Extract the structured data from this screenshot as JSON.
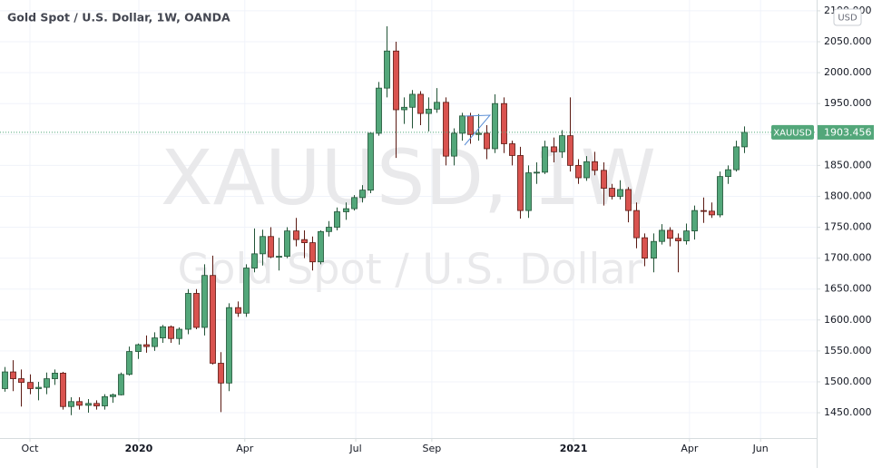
{
  "chart_data": {
    "type": "candlestick",
    "title": "Gold Spot / U.S. Dollar, 1W, OANDA",
    "watermark": "XAUUSD, 1W",
    "watermark_subtitle": "Gold Spot / U.S. Dollar",
    "currency": "USD",
    "symbol": "XAUUSD",
    "last_price": 1903.456,
    "up_color": "#53a77a",
    "down_color": "#d9534f",
    "grid": true,
    "open": [
      1489,
      1516,
      1505,
      1499,
      1489,
      1491,
      1505,
      1514,
      1460,
      1468,
      1462,
      1465,
      1461,
      1476,
      1479,
      1512,
      1549,
      1560,
      1557,
      1571,
      1589,
      1570,
      1585,
      1643,
      1588,
      1672,
      1530,
      1498,
      1620,
      1611,
      1684,
      1707,
      1735,
      1702,
      1703,
      1744,
      1730,
      1725,
      1694,
      1743,
      1750,
      1775,
      1780,
      1798,
      1810,
      1902,
      1975,
      2035,
      1940,
      1944,
      1965,
      1934,
      1941,
      1952,
      1865,
      1902,
      1930,
      1900,
      1902,
      1877,
      1950,
      1885,
      1866,
      1777,
      1838,
      1839,
      1880,
      1872,
      1898,
      1850,
      1830,
      1856,
      1842,
      1813,
      1800,
      1811,
      1777,
      1733,
      1700,
      1727,
      1745,
      1732,
      1728,
      1744,
      1777,
      1776,
      1770,
      1832,
      1843,
      1880
    ],
    "high": [
      1524,
      1535,
      1520,
      1512,
      1500,
      1515,
      1520,
      1516,
      1475,
      1475,
      1472,
      1470,
      1480,
      1481,
      1515,
      1557,
      1562,
      1575,
      1580,
      1592,
      1591,
      1588,
      1650,
      1650,
      1690,
      1704,
      1548,
      1627,
      1630,
      1690,
      1748,
      1746,
      1750,
      1733,
      1750,
      1765,
      1745,
      1735,
      1745,
      1760,
      1782,
      1790,
      1802,
      1818,
      1904,
      1985,
      2075,
      2050,
      1960,
      1972,
      1970,
      1960,
      1975,
      1960,
      1910,
      1935,
      1935,
      1933,
      1915,
      1965,
      1960,
      1890,
      1880,
      1850,
      1855,
      1890,
      1895,
      1907,
      1960,
      1860,
      1865,
      1872,
      1855,
      1820,
      1826,
      1815,
      1790,
      1740,
      1740,
      1755,
      1750,
      1740,
      1756,
      1785,
      1798,
      1790,
      1840,
      1850,
      1890,
      1913
    ],
    "low": [
      1484,
      1485,
      1460,
      1480,
      1470,
      1480,
      1495,
      1455,
      1446,
      1455,
      1450,
      1455,
      1455,
      1466,
      1478,
      1510,
      1537,
      1547,
      1550,
      1563,
      1563,
      1560,
      1577,
      1585,
      1575,
      1528,
      1451,
      1485,
      1605,
      1605,
      1677,
      1688,
      1700,
      1680,
      1700,
      1719,
      1700,
      1680,
      1690,
      1735,
      1745,
      1762,
      1777,
      1790,
      1805,
      1898,
      1960,
      1862,
      1917,
      1910,
      1915,
      1905,
      1935,
      1850,
      1850,
      1890,
      1885,
      1890,
      1860,
      1870,
      1870,
      1850,
      1764,
      1765,
      1820,
      1836,
      1855,
      1862,
      1840,
      1820,
      1825,
      1834,
      1785,
      1795,
      1795,
      1758,
      1716,
      1687,
      1677,
      1722,
      1719,
      1677,
      1722,
      1730,
      1757,
      1765,
      1766,
      1820,
      1840,
      1870
    ],
    "close": [
      1516,
      1505,
      1499,
      1489,
      1491,
      1505,
      1514,
      1460,
      1468,
      1462,
      1465,
      1461,
      1476,
      1479,
      1512,
      1549,
      1560,
      1557,
      1571,
      1589,
      1570,
      1585,
      1643,
      1588,
      1672,
      1530,
      1498,
      1620,
      1611,
      1684,
      1707,
      1735,
      1702,
      1703,
      1744,
      1730,
      1725,
      1694,
      1743,
      1750,
      1775,
      1780,
      1798,
      1810,
      1902,
      1975,
      2035,
      1940,
      1944,
      1965,
      1934,
      1941,
      1952,
      1865,
      1902,
      1930,
      1900,
      1902,
      1877,
      1950,
      1885,
      1866,
      1777,
      1838,
      1839,
      1880,
      1872,
      1898,
      1850,
      1830,
      1856,
      1842,
      1813,
      1800,
      1811,
      1777,
      1733,
      1700,
      1727,
      1745,
      1732,
      1728,
      1744,
      1777,
      1776,
      1770,
      1832,
      1843,
      1880,
      1903.456
    ],
    "xlim": [
      -0.55,
      97.7
    ],
    "xticks": [
      {
        "value": 3.05,
        "label": "Oct"
      },
      {
        "value": 16.15,
        "label": "2020"
      },
      {
        "value": 28.9,
        "label": "Apr"
      },
      {
        "value": 42.25,
        "label": "Jul"
      },
      {
        "value": 51.4,
        "label": "Sep"
      },
      {
        "value": 68.45,
        "label": "2021"
      },
      {
        "value": 82.4,
        "label": "Apr"
      },
      {
        "value": 90.95,
        "label": "Jun"
      }
    ],
    "ylim": [
      1409,
      2117.5
    ],
    "yticks": [
      {
        "value": 1450,
        "label": "1450.000"
      },
      {
        "value": 1500,
        "label": "1500.000"
      },
      {
        "value": 1550,
        "label": "1550.000"
      },
      {
        "value": 1600,
        "label": "1600.000"
      },
      {
        "value": 1650,
        "label": "1650.000"
      },
      {
        "value": 1700,
        "label": "1700.000"
      },
      {
        "value": 1750,
        "label": "1750.000"
      },
      {
        "value": 1800,
        "label": "1800.000"
      },
      {
        "value": 1850,
        "label": "1850.000"
      },
      {
        "value": 1900,
        "label": "1900.000"
      },
      {
        "value": 1950,
        "label": "1950.000"
      },
      {
        "value": 2000,
        "label": "2000.000"
      },
      {
        "value": 2050,
        "label": "2050.000"
      },
      {
        "value": 2100,
        "label": "2100.000"
      }
    ]
  }
}
